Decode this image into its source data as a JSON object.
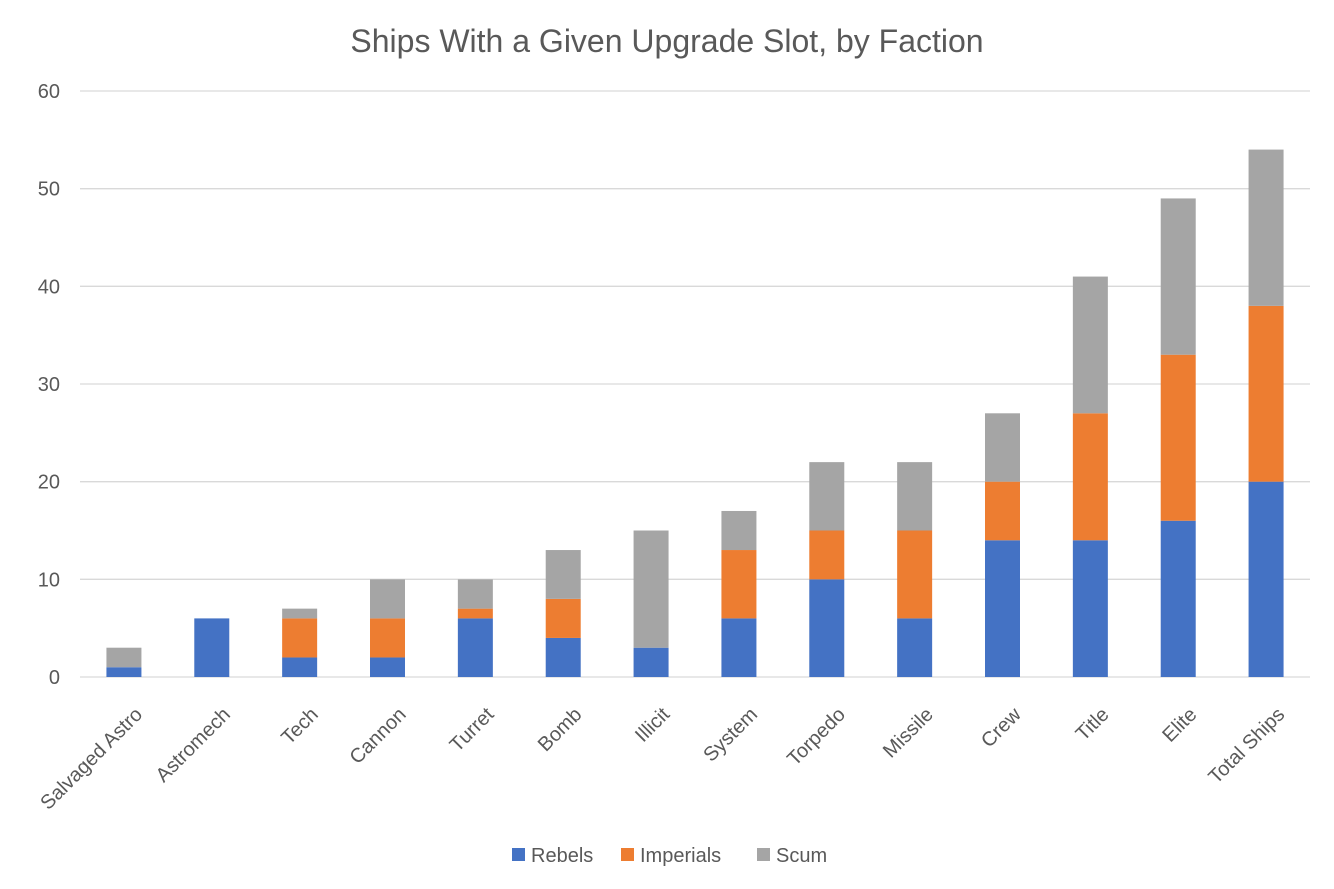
{
  "chart_data": {
    "type": "bar",
    "stacked": true,
    "title": "Ships With a Given Upgrade Slot, by Faction",
    "xlabel": "",
    "ylabel": "",
    "ylim": [
      0,
      60
    ],
    "yticks": [
      0,
      10,
      20,
      30,
      40,
      50,
      60
    ],
    "grid": true,
    "legend_position": "bottom",
    "categories": [
      "Salvaged Astro",
      "Astromech",
      "Tech",
      "Cannon",
      "Turret",
      "Bomb",
      "Illicit",
      "System",
      "Torpedo",
      "Missile",
      "Crew",
      "Title",
      "Elite",
      "Total Ships"
    ],
    "series": [
      {
        "name": "Rebels",
        "color": "#4472c4",
        "values": [
          1,
          6,
          2,
          2,
          6,
          4,
          3,
          6,
          10,
          6,
          14,
          14,
          16,
          20
        ]
      },
      {
        "name": "Imperials",
        "color": "#ed7d31",
        "values": [
          0,
          0,
          4,
          4,
          1,
          4,
          0,
          7,
          5,
          9,
          6,
          13,
          17,
          18
        ]
      },
      {
        "name": "Scum",
        "color": "#a5a5a5",
        "values": [
          2,
          0,
          1,
          4,
          3,
          5,
          12,
          4,
          7,
          7,
          7,
          14,
          16,
          16
        ]
      }
    ]
  }
}
